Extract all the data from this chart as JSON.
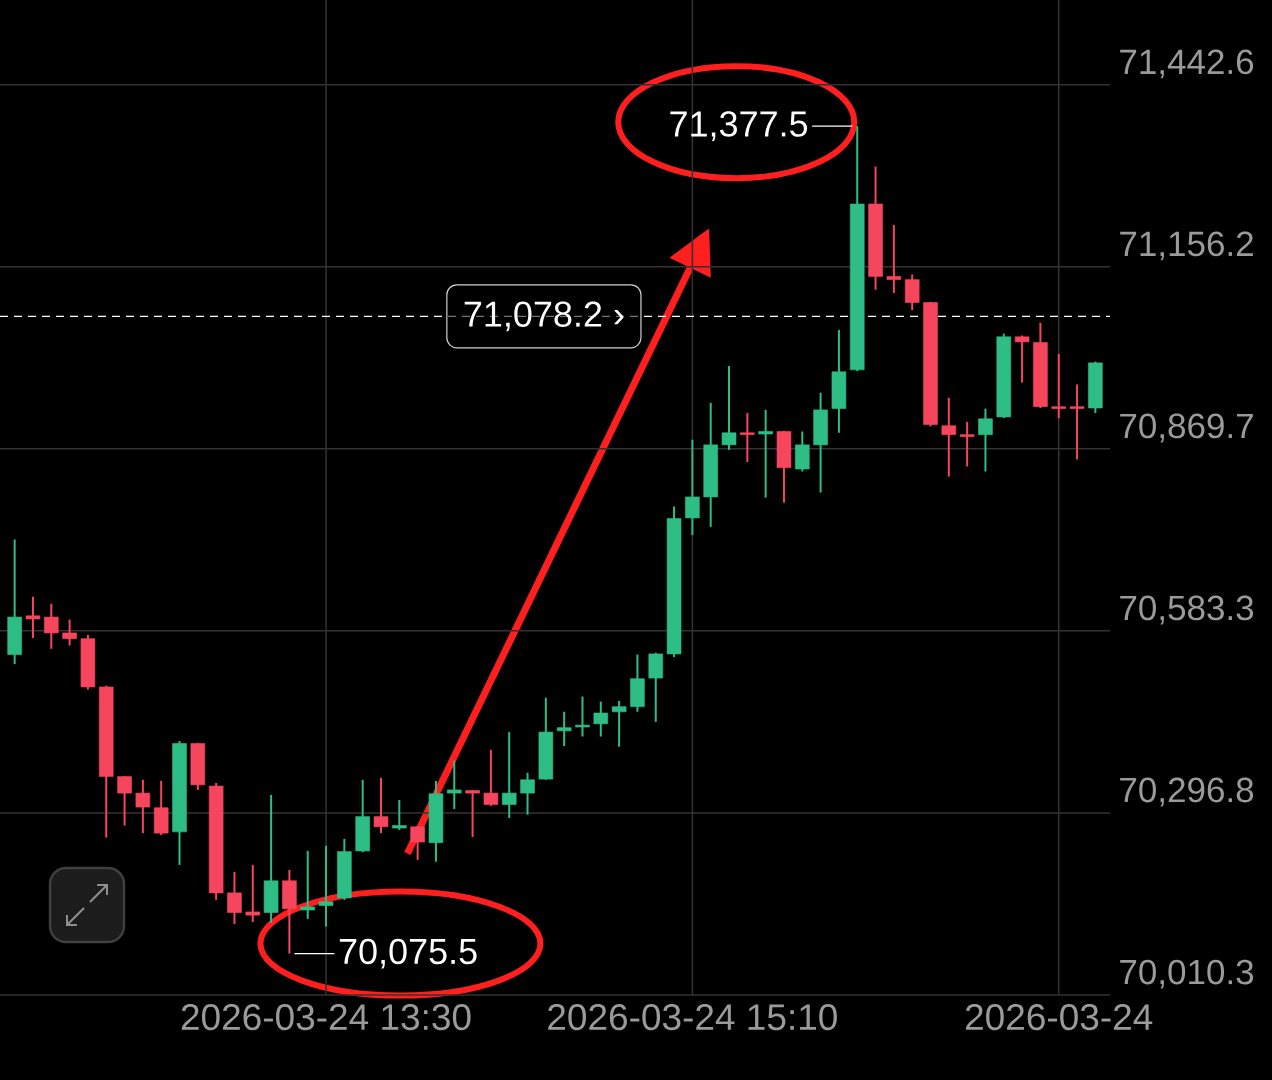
{
  "chart_data": {
    "type": "candlestick",
    "x": [
      "2026-03-24T12:05",
      "2026-03-24T12:10",
      "2026-03-24T12:15",
      "2026-03-24T12:20",
      "2026-03-24T12:25",
      "2026-03-24T12:30",
      "2026-03-24T12:35",
      "2026-03-24T12:40",
      "2026-03-24T12:45",
      "2026-03-24T12:50",
      "2026-03-24T12:55",
      "2026-03-24T13:00",
      "2026-03-24T13:05",
      "2026-03-24T13:10",
      "2026-03-24T13:15",
      "2026-03-24T13:20",
      "2026-03-24T13:25",
      "2026-03-24T13:30",
      "2026-03-24T13:35",
      "2026-03-24T13:40",
      "2026-03-24T13:45",
      "2026-03-24T13:50",
      "2026-03-24T13:55",
      "2026-03-24T14:00",
      "2026-03-24T14:05",
      "2026-03-24T14:10",
      "2026-03-24T14:15",
      "2026-03-24T14:20",
      "2026-03-24T14:25",
      "2026-03-24T14:30",
      "2026-03-24T14:35",
      "2026-03-24T14:40",
      "2026-03-24T14:45",
      "2026-03-24T14:50",
      "2026-03-24T14:55",
      "2026-03-24T15:00",
      "2026-03-24T15:05",
      "2026-03-24T15:10",
      "2026-03-24T15:15",
      "2026-03-24T15:20",
      "2026-03-24T15:25",
      "2026-03-24T15:30",
      "2026-03-24T15:35",
      "2026-03-24T15:40",
      "2026-03-24T15:45",
      "2026-03-24T15:50",
      "2026-03-24T15:55",
      "2026-03-24T16:00",
      "2026-03-24T16:05",
      "2026-03-24T16:10",
      "2026-03-24T16:15",
      "2026-03-24T16:20",
      "2026-03-24T16:25",
      "2026-03-24T16:30",
      "2026-03-24T16:35",
      "2026-03-24T16:40",
      "2026-03-24T16:45",
      "2026-03-24T16:50",
      "2026-03-24T16:55",
      "2026-03-24T17:00"
    ],
    "ohlc": [
      [
        70546,
        70727,
        70531,
        70605
      ],
      [
        70607,
        70637,
        70572,
        70602
      ],
      [
        70605,
        70626,
        70555,
        70580
      ],
      [
        70580,
        70601,
        70560,
        70571
      ],
      [
        70571,
        70577,
        70491,
        70495
      ],
      [
        70495,
        70497,
        70258,
        70354
      ],
      [
        70354,
        70355,
        70277,
        70328
      ],
      [
        70328,
        70349,
        70265,
        70306
      ],
      [
        70305,
        70347,
        70262,
        70265
      ],
      [
        70267,
        70410,
        70215,
        70406
      ],
      [
        70406,
        70407,
        70333,
        70341
      ],
      [
        70339,
        70344,
        70160,
        70171
      ],
      [
        70171,
        70204,
        70122,
        70140
      ],
      [
        70141,
        70215,
        70125,
        70136
      ],
      [
        70140,
        70325,
        70124,
        70190
      ],
      [
        70190,
        70207,
        70075.5,
        70146
      ],
      [
        70144,
        70237,
        70130,
        70149
      ],
      [
        70151,
        70245,
        70118,
        70157
      ],
      [
        70163,
        70256,
        70160,
        70236
      ],
      [
        70237,
        70349,
        70235,
        70291
      ],
      [
        70291,
        70352,
        70265,
        70275
      ],
      [
        70273,
        70317,
        70270,
        70277
      ],
      [
        70275,
        70276,
        70223,
        70251
      ],
      [
        70250,
        70347,
        70220,
        70327
      ],
      [
        70328,
        70379,
        70303,
        70333
      ],
      [
        70332,
        70333,
        70259,
        70328
      ],
      [
        70328,
        70396,
        70308,
        70310
      ],
      [
        70310,
        70424,
        70289,
        70328
      ],
      [
        70328,
        70360,
        70294,
        70349
      ],
      [
        70350,
        70478,
        70349,
        70424
      ],
      [
        70426,
        70456,
        70402,
        70431
      ],
      [
        70432,
        70480,
        70417,
        70435
      ],
      [
        70437,
        70472,
        70417,
        70454
      ],
      [
        70456,
        70473,
        70401,
        70464
      ],
      [
        70464,
        70546,
        70456,
        70508
      ],
      [
        70509,
        70549,
        70440,
        70547
      ],
      [
        70547,
        70779,
        70542,
        70760
      ],
      [
        70761,
        70884,
        70734,
        70794
      ],
      [
        70794,
        70942,
        70747,
        70876
      ],
      [
        70876,
        71000,
        70868,
        70895
      ],
      [
        70895,
        70926,
        70849,
        70892
      ],
      [
        70893,
        70931,
        70793,
        70897
      ],
      [
        70897,
        70898,
        70785,
        70840
      ],
      [
        70838,
        70897,
        70834,
        70876
      ],
      [
        70876,
        70958,
        70801,
        70931
      ],
      [
        70933,
        71057,
        70895,
        70991
      ],
      [
        70994,
        71377.5,
        70992,
        71255
      ],
      [
        71255,
        71314,
        71120,
        71141
      ],
      [
        71141,
        71222,
        71115,
        71136
      ],
      [
        71136,
        71144,
        71088,
        71100
      ],
      [
        71100,
        71101,
        70905,
        70908
      ],
      [
        70906,
        70950,
        70826,
        70892
      ],
      [
        70892,
        70912,
        70842,
        70889
      ],
      [
        70892,
        70933,
        70834,
        70917
      ],
      [
        70920,
        71051,
        70918,
        71046
      ],
      [
        71046,
        71048,
        70974,
        71038
      ],
      [
        71037,
        71068,
        70934,
        70936
      ],
      [
        70936,
        71019,
        70918,
        70933
      ],
      [
        70936,
        70971,
        70853,
        70933
      ],
      [
        70934,
        71007,
        70926,
        71005
      ]
    ],
    "colors": [
      "#2ebd85",
      "#f6465d",
      "#f6465d",
      "#f6465d",
      "#f6465d",
      "#f6465d",
      "#f6465d",
      "#f6465d",
      "#f6465d",
      "#2ebd85",
      "#f6465d",
      "#f6465d",
      "#f6465d",
      "#f6465d",
      "#2ebd85",
      "#f6465d",
      "#2ebd85",
      "#2ebd85",
      "#2ebd85",
      "#2ebd85",
      "#f6465d",
      "#2ebd85",
      "#f6465d",
      "#2ebd85",
      "#2ebd85",
      "#f6465d",
      "#f6465d",
      "#2ebd85",
      "#2ebd85",
      "#2ebd85",
      "#2ebd85",
      "#2ebd85",
      "#2ebd85",
      "#2ebd85",
      "#2ebd85",
      "#2ebd85",
      "#2ebd85",
      "#2ebd85",
      "#2ebd85",
      "#2ebd85",
      "#f6465d",
      "#2ebd85",
      "#f6465d",
      "#2ebd85",
      "#2ebd85",
      "#2ebd85",
      "#2ebd85",
      "#f6465d",
      "#f6465d",
      "#f6465d",
      "#f6465d",
      "#f6465d",
      "#f6465d",
      "#2ebd85",
      "#2ebd85",
      "#f6465d",
      "#f6465d",
      "#f6465d",
      "#f6465d",
      "#2ebd85"
    ],
    "xlim": [
      "2026-03-24T12:01",
      "2026-03-24T17:04"
    ],
    "xticks": [
      {
        "value": "2026-03-24T13:30",
        "label": "2026-03-24 13:30"
      },
      {
        "value": "2026-03-24T15:10",
        "label": "2026-03-24 15:10"
      },
      {
        "value": "2026-03-24T16:50",
        "label": "2026-03-24"
      }
    ],
    "ylim": [
      70010.3,
      71576
    ],
    "yticks": [
      {
        "value": 70010.3,
        "label": "70,010.3"
      },
      {
        "value": 70296.8,
        "label": "70,296.8"
      },
      {
        "value": 70583.3,
        "label": "70,583.3"
      },
      {
        "value": 70869.7,
        "label": "70,869.7"
      },
      {
        "value": 71156.2,
        "label": "71,156.2"
      },
      {
        "value": 71442.6,
        "label": "71,442.6"
      }
    ],
    "grid": true,
    "ref_lines": [
      {
        "axis": "y",
        "value": 71078.2,
        "label": "71,078.2 ›",
        "color": "#ffffff",
        "line_style": "dashed"
      }
    ],
    "annotations": [
      {
        "text": "71,377.5",
        "x": "2026-03-24T15:55",
        "y": 71377.5
      },
      {
        "text": "70,075.5",
        "x": "2026-03-24T13:20",
        "y": 70075.5
      }
    ]
  }
}
